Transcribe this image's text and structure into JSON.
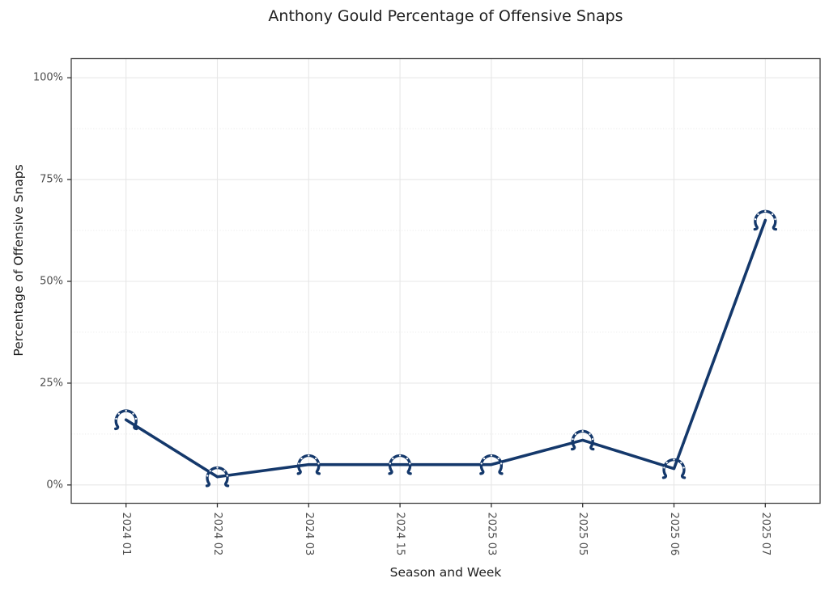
{
  "chart_data": {
    "type": "line",
    "title": "Anthony Gould Percentage of Offensive Snaps",
    "xlabel": "Season and Week",
    "ylabel": "Percentage of Offensive Snaps",
    "categories": [
      "2024 01",
      "2024 02",
      "2024 03",
      "2024 15",
      "2025 03",
      "2025 05",
      "2025 06",
      "2025 07"
    ],
    "series": [
      {
        "name": "Anthony Gould",
        "values": [
          16,
          2,
          5,
          5,
          5,
          11,
          4,
          65
        ]
      }
    ],
    "y_ticks": [
      {
        "value": 0,
        "label": "0%"
      },
      {
        "value": 25,
        "label": "25%"
      },
      {
        "value": 50,
        "label": "50%"
      },
      {
        "value": 75,
        "label": "75%"
      },
      {
        "value": 100,
        "label": "100%"
      }
    ],
    "y_minor_ticks": [
      12.5,
      37.5,
      62.5,
      87.5
    ],
    "ylim": [
      -4.5,
      104.7
    ],
    "grid": true,
    "legend": "none",
    "marker": "colts-horseshoe-logo",
    "colors": {
      "line": "#14386B",
      "marker": "#14386B",
      "grid_major": "#e7e7e7",
      "grid_minor": "#e9e9e9",
      "panel_border": "#404040",
      "tick_mark": "#333333",
      "tick_label": "#4d4d4d",
      "text": "#1f1f1f",
      "background": "#ffffff"
    }
  }
}
